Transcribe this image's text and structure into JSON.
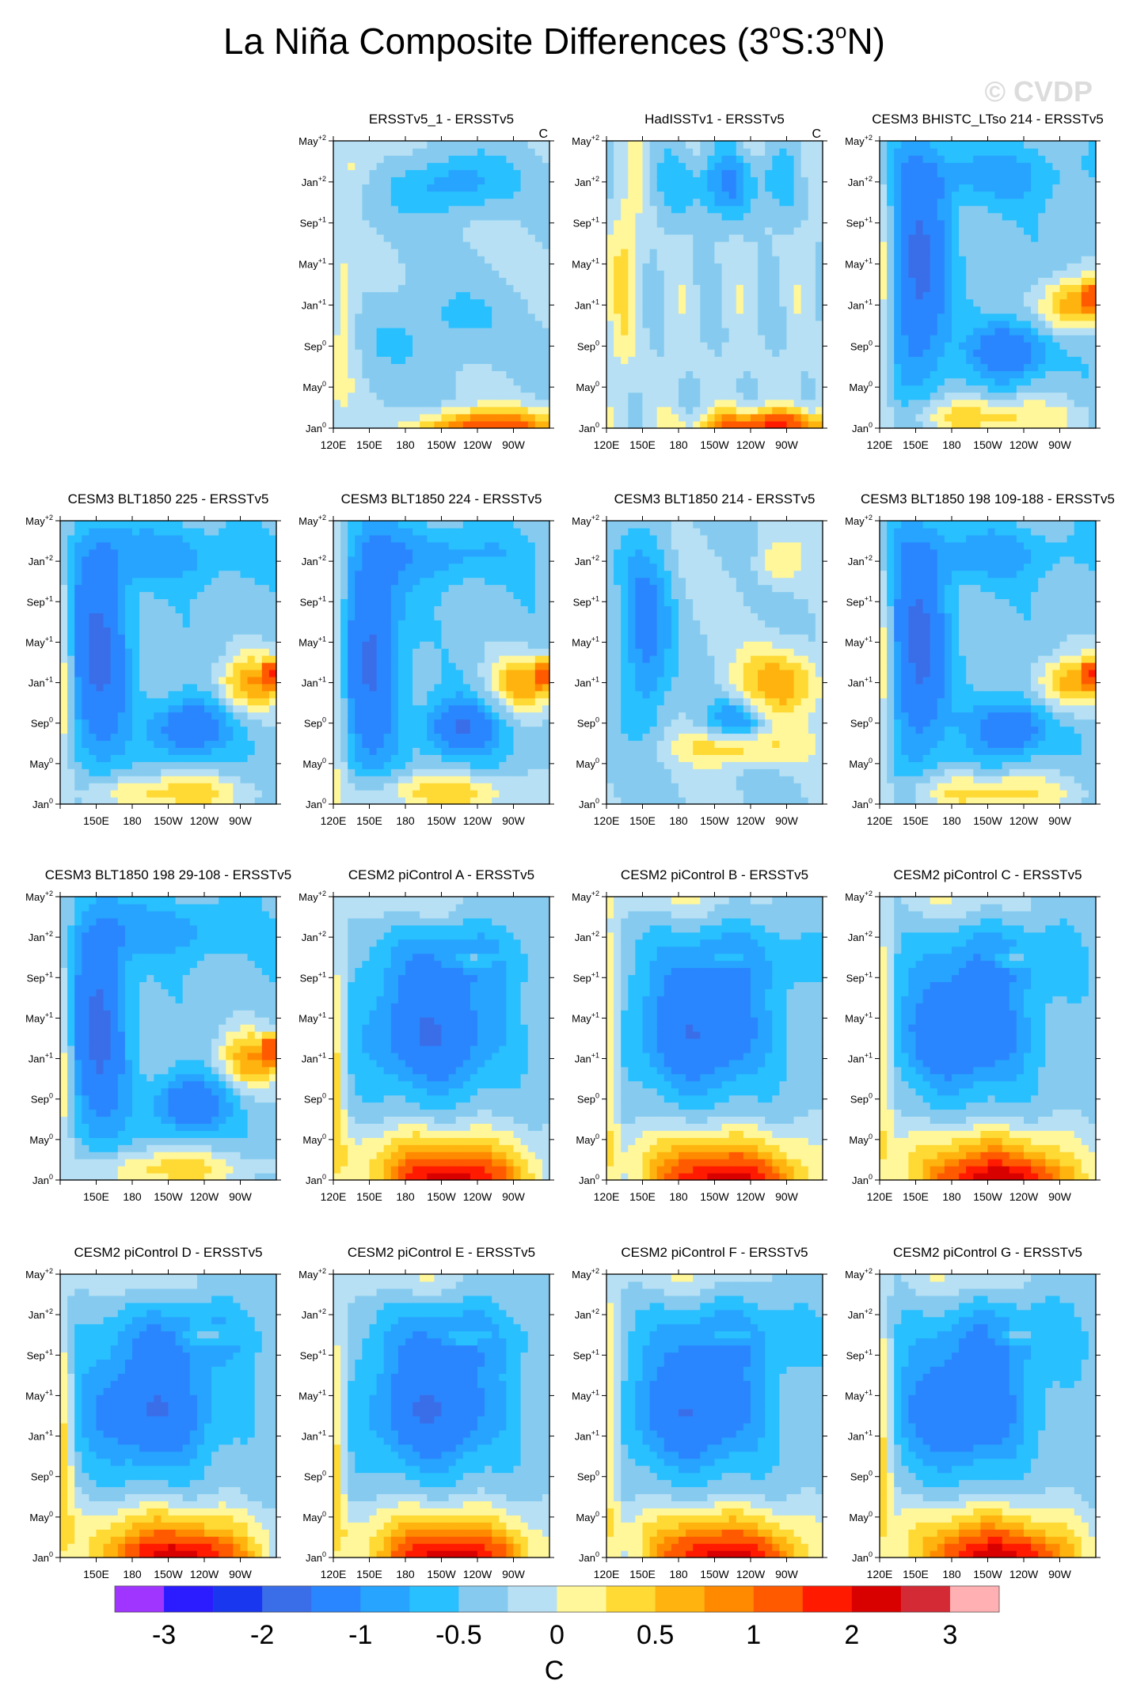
{
  "figure": {
    "title_prefix": "La Niña Composite Differences (3",
    "title_deg": "o",
    "title_mid": "S:3",
    "title_suffix": "N)",
    "watermark": "© CVDP",
    "units_label": "C"
  },
  "chart_data": {
    "type": "heatmap",
    "title": "La Niña Composite Differences (3°S:3°N)",
    "units": "C",
    "x_ticks": [
      "120E",
      "150E",
      "180",
      "150W",
      "120W",
      "90W"
    ],
    "y_ticks": [
      "Jan⁰",
      "May⁰",
      "Sep⁰",
      "Jan⁺¹",
      "May⁺¹",
      "Sep⁺¹",
      "Jan⁺²",
      "May⁺²"
    ],
    "y_tick_parts": [
      {
        "m": "Jan",
        "s": "0"
      },
      {
        "m": "May",
        "s": "0"
      },
      {
        "m": "Sep",
        "s": "0"
      },
      {
        "m": "Jan",
        "s": "+1"
      },
      {
        "m": "May",
        "s": "+1"
      },
      {
        "m": "Sep",
        "s": "+1"
      },
      {
        "m": "Jan",
        "s": "+2"
      },
      {
        "m": "May",
        "s": "+2"
      }
    ],
    "colorbar": {
      "levels": [
        -3,
        -2.5,
        -2,
        -1.5,
        -1,
        -0.75,
        -0.5,
        -0.25,
        0,
        0.25,
        0.5,
        0.75,
        1,
        1.5,
        2,
        2.5,
        3
      ],
      "labels": [
        "-3",
        "-2",
        "-1",
        "-0.5",
        "0",
        "0.5",
        "1",
        "2",
        "3"
      ],
      "colors": [
        "#9f35ff",
        "#2b1bff",
        "#1a37f0",
        "#3a6ee8",
        "#2a86ff",
        "#27a4ff",
        "#28c0ff",
        "#86cbef",
        "#b8e0f4",
        "#fff79a",
        "#ffd934",
        "#ffb30f",
        "#ff8a00",
        "#ff5a00",
        "#ff1a00",
        "#d90000",
        "#d42a35",
        "#ffb0b3"
      ]
    },
    "panels": [
      {
        "title": "ERSSTv5_1 - ERSSTv5",
        "corner_label": "C",
        "pattern": "obs_a"
      },
      {
        "title": "HadISSTv1 - ERSSTv5",
        "corner_label": "C",
        "pattern": "obs_b"
      },
      {
        "title": "CESM3 BHISTC_LTso 214 - ERSSTv5",
        "pattern": "cesm3"
      },
      {
        "title": "CESM3 BLT1850 225 - ERSSTv5",
        "pattern": "cesm3"
      },
      {
        "title": "CESM3 BLT1850 224 - ERSSTv5",
        "pattern": "cesm3"
      },
      {
        "title": "CESM3 BLT1850 214 - ERSSTv5",
        "pattern": "cesm3_weak"
      },
      {
        "title": "CESM3 BLT1850 198 109-188 - ERSSTv5",
        "pattern": "cesm3"
      },
      {
        "title": "CESM3 BLT1850 198 29-108 - ERSSTv5",
        "pattern": "cesm3"
      },
      {
        "title": "CESM2 piControl A - ERSSTv5",
        "pattern": "cesm2"
      },
      {
        "title": "CESM2 piControl B - ERSSTv5",
        "pattern": "cesm2"
      },
      {
        "title": "CESM2 piControl C - ERSSTv5",
        "pattern": "cesm2"
      },
      {
        "title": "CESM2 piControl D - ERSSTv5",
        "pattern": "cesm2"
      },
      {
        "title": "CESM2 piControl E - ERSSTv5",
        "pattern": "cesm2"
      },
      {
        "title": "CESM2 piControl F - ERSSTv5",
        "pattern": "cesm2"
      },
      {
        "title": "CESM2 piControl G - ERSSTv5",
        "pattern": "cesm2"
      }
    ]
  }
}
